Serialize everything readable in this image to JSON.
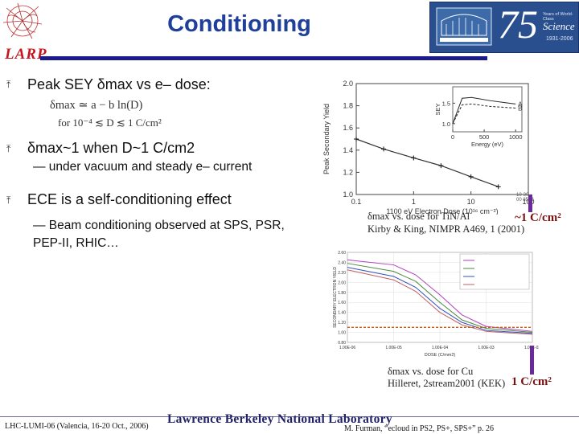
{
  "header": {
    "title": "Conditioning",
    "logo_text": "LARP",
    "badge_lines": [
      "Years of World-Class",
      "Science",
      "1931-2006"
    ],
    "badge_number": "75"
  },
  "bullets": [
    {
      "text": "Peak SEY δmax vs e– dose:"
    },
    {
      "text": "δmax~1 when D~1 C/cm2",
      "sub": "— under vacuum and steady e– current"
    },
    {
      "text": "ECE is a self-conditioning effect",
      "sub": "— Beam conditioning observed at SPS, PSR, PEP-II, RHIC…"
    }
  ],
  "formula": {
    "line1": "δmax ≃ a − b ln(D)",
    "line2": "for 10⁻⁴ ≲ D ≲ 1 C/cm²"
  },
  "fig1": {
    "caption_line1": "δmax vs. dose for TiN/Al",
    "caption_line2": "Kirby & King, NIMPR A469, 1 (2001)",
    "annotation": "~1 C/cm²",
    "corner_note": "10-30-00 8563"
  },
  "fig2": {
    "caption_line1": "δmax vs. dose for Cu",
    "caption_line2": "Hilleret, 2stream2001 (KEK)",
    "annotation": "1 C/cm²"
  },
  "footer": {
    "left": "LHC-LUMI-06 (Valencia, 16-20 Oct., 2006)",
    "center": "Lawrence Berkeley National Laboratory",
    "right": "M. Furman, “ecloud in PS2, PS+, SPS+” p. 26"
  },
  "chart_data": [
    {
      "type": "line",
      "xlabel": "1100 eV Electron Dose (10¹⁶ cm⁻²)",
      "ylabel": "Peak Secondary Yield",
      "xscale": "log",
      "xlim": [
        0.1,
        100
      ],
      "ylim": [
        1.0,
        2.0
      ],
      "x_ticks": [
        "0.1",
        "1",
        "10",
        "100"
      ],
      "y_ticks": [
        "1.0",
        "1.2",
        "1.4",
        "1.6",
        "1.8",
        "2.0"
      ],
      "series": [
        {
          "values": [
            [
              0.1,
              1.5
            ],
            [
              0.3,
              1.41
            ],
            [
              1,
              1.33
            ],
            [
              3,
              1.26
            ],
            [
              10,
              1.16
            ],
            [
              30,
              1.07
            ]
          ]
        }
      ],
      "inset": {
        "xlabel": "Energy (eV)",
        "ylabel": "SEY",
        "x_ticks": [
          "0",
          "500",
          "1000"
        ],
        "y_ticks": [
          "1.0",
          "1.5"
        ],
        "series": [
          {
            "name": "A",
            "values": [
              [
                0,
                1.0
              ],
              [
                150,
                1.62
              ],
              [
                300,
                1.64
              ],
              [
                600,
                1.56
              ],
              [
                1000,
                1.48
              ]
            ]
          },
          {
            "name": "B",
            "values": [
              [
                0,
                1.0
              ],
              [
                150,
                1.46
              ],
              [
                300,
                1.48
              ],
              [
                600,
                1.42
              ],
              [
                1000,
                1.38
              ]
            ]
          }
        ]
      }
    },
    {
      "type": "line",
      "xlabel": "DOSE (C/mm2)",
      "ylabel": "SECONDARY ELECTRON YIELD",
      "xscale": "log",
      "xlim": [
        1e-06,
        0.01
      ],
      "ylim": [
        0.8,
        2.6
      ],
      "x_ticks": [
        "1.00E-06",
        "1.00E-05",
        "1.00E-04",
        "1.00E-03",
        "1.00E-02"
      ],
      "y_ticks": [
        "0.80",
        "1.00",
        "1.20",
        "1.40",
        "1.60",
        "1.80",
        "2.00",
        "2.20",
        "2.40",
        "2.60"
      ],
      "series": [
        {
          "values": [
            [
              1e-06,
              2.45
            ],
            [
              1e-05,
              2.35
            ],
            [
              3e-05,
              2.15
            ],
            [
              0.0001,
              1.75
            ],
            [
              0.0003,
              1.35
            ],
            [
              0.001,
              1.12
            ],
            [
              0.01,
              1.02
            ]
          ]
        },
        {
          "values": [
            [
              1e-06,
              2.38
            ],
            [
              1e-05,
              2.22
            ],
            [
              3e-05,
              2.02
            ],
            [
              0.0001,
              1.6
            ],
            [
              0.0003,
              1.25
            ],
            [
              0.001,
              1.08
            ],
            [
              0.01,
              1.0
            ]
          ]
        },
        {
          "values": [
            [
              1e-06,
              2.3
            ],
            [
              1e-05,
              2.12
            ],
            [
              3e-05,
              1.9
            ],
            [
              0.0001,
              1.48
            ],
            [
              0.0003,
              1.2
            ],
            [
              0.001,
              1.04
            ],
            [
              0.01,
              0.98
            ]
          ]
        },
        {
          "values": [
            [
              1e-06,
              2.25
            ],
            [
              1e-05,
              2.05
            ],
            [
              3e-05,
              1.82
            ],
            [
              0.0001,
              1.4
            ],
            [
              0.0003,
              1.15
            ],
            [
              0.001,
              1.02
            ],
            [
              0.01,
              0.96
            ]
          ]
        },
        {
          "values": [
            [
              1e-06,
              1.1
            ],
            [
              0.01,
              1.1
            ]
          ]
        }
      ]
    }
  ]
}
